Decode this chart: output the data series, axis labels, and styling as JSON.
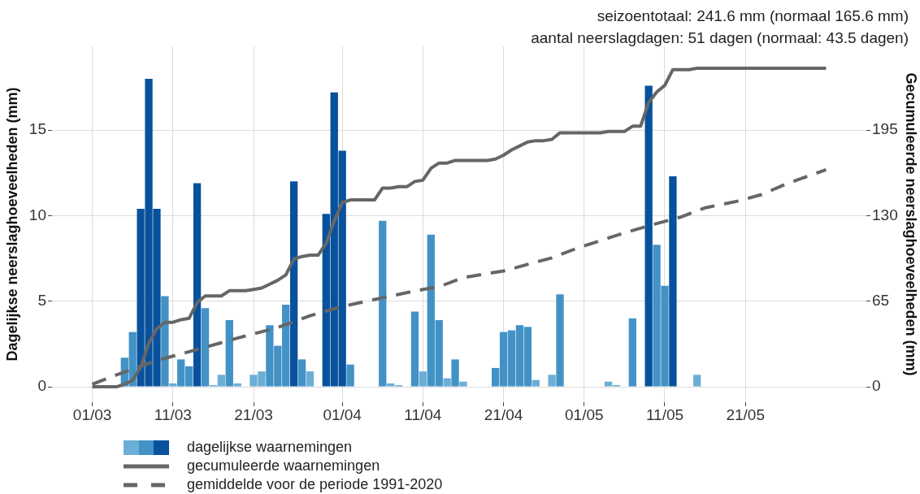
{
  "chart_data": {
    "type": "bar",
    "annotations": [
      "seizoentotaal: 241.6 mm (normaal 165.6 mm)",
      "aantal neerslagdagen: 51 dagen (normaal: 43.5 dagen)"
    ],
    "ylabel": "Dagelijkse neerslaghoeveelheden (mm)",
    "y2label": "Gecumuleerde neerslaghoeveelheden (mm)",
    "x": [
      "--03-01",
      "--03-02",
      "--03-03",
      "--03-04",
      "--03-05",
      "--03-06",
      "--03-07",
      "--03-08",
      "--03-09",
      "--03-10",
      "--03-11",
      "--03-12",
      "--03-13",
      "--03-14",
      "--03-15",
      "--03-16",
      "--03-17",
      "--03-18",
      "--03-19",
      "--03-20",
      "--03-21",
      "--03-22",
      "--03-23",
      "--03-24",
      "--03-25",
      "--03-26",
      "--03-27",
      "--03-28",
      "--03-29",
      "--03-30",
      "--03-31",
      "--04-01",
      "--04-02",
      "--04-03",
      "--04-04",
      "--04-05",
      "--04-06",
      "--04-07",
      "--04-08",
      "--04-09",
      "--04-10",
      "--04-11",
      "--04-12",
      "--04-13",
      "--04-14",
      "--04-15",
      "--04-16",
      "--04-17",
      "--04-18",
      "--04-19",
      "--04-20",
      "--04-21",
      "--04-22",
      "--04-23",
      "--04-24",
      "--04-25",
      "--04-26",
      "--04-27",
      "--04-28",
      "--04-29",
      "--04-30",
      "--05-01",
      "--05-02",
      "--05-03",
      "--05-04",
      "--05-05",
      "--05-06",
      "--05-07",
      "--05-08",
      "--05-09",
      "--05-10",
      "--05-11",
      "--05-12",
      "--05-13",
      "--05-14",
      "--05-15",
      "--05-16",
      "--05-17",
      "--05-18",
      "--05-19",
      "--05-20",
      "--05-21",
      "--05-22",
      "--05-23",
      "--05-24",
      "--05-25",
      "--05-26",
      "--05-27",
      "--05-28",
      "--05-29",
      "--05-30",
      "--05-31"
    ],
    "xlim": [
      "--02-24",
      "--06-05"
    ],
    "xticks": [
      {
        "value": "--03-01",
        "label": "01/03"
      },
      {
        "value": "--03-11",
        "label": "11/03"
      },
      {
        "value": "--03-21",
        "label": "21/03"
      },
      {
        "value": "--04-01",
        "label": "01/04"
      },
      {
        "value": "--04-11",
        "label": "11/04"
      },
      {
        "value": "--04-21",
        "label": "21/04"
      },
      {
        "value": "--05-01",
        "label": "01/05"
      },
      {
        "value": "--05-11",
        "label": "11/05"
      },
      {
        "value": "--05-21",
        "label": "21/05"
      }
    ],
    "ylim": [
      -0.9,
      19.9
    ],
    "yticks": [
      0,
      5,
      10,
      15
    ],
    "y2lim": [
      -11.7,
      258.7
    ],
    "y2ticks": [
      0,
      65,
      130,
      195
    ],
    "grid": true,
    "legend": "bottom left",
    "marker": "none",
    "series": [
      {
        "name": "dagelijkse waarnemingen",
        "values": [
          0,
          0,
          0,
          0,
          1.7,
          3.2,
          10.4,
          18,
          10.4,
          5.3,
          0.2,
          1.6,
          1.2,
          11.9,
          4.6,
          0.1,
          0.7,
          3.9,
          0.2,
          0,
          0.7,
          0.9,
          3.6,
          2.4,
          4.8,
          12,
          1.6,
          0.9,
          0,
          10.1,
          17.2,
          13.8,
          1.3,
          0,
          0,
          0,
          9.7,
          0.2,
          0.1,
          0,
          4.4,
          0.9,
          8.9,
          3.9,
          0.5,
          1.6,
          0.3,
          0,
          0,
          0,
          1.1,
          3.2,
          3.3,
          3.6,
          3.5,
          0.4,
          0,
          0.7,
          5.4,
          0,
          0,
          0,
          0,
          0,
          0.3,
          0.1,
          0,
          4,
          0,
          17.6,
          8.3,
          5.9,
          12.3,
          0,
          0,
          0.7,
          0,
          0,
          0,
          0,
          0,
          0,
          0,
          0,
          0,
          0,
          0,
          0,
          0,
          0,
          0,
          0
        ],
        "colors": [
          "#6baed6",
          "#6baed6",
          "#6baed6",
          "#6baed6",
          "#4292c6",
          "#4292c6",
          "#08519c",
          "#08519c",
          "#08519c",
          "#4292c6",
          "#6baed6",
          "#4292c6",
          "#4292c6",
          "#08519c",
          "#4292c6",
          "#6baed6",
          "#6baed6",
          "#4292c6",
          "#6baed6",
          "#6baed6",
          "#6baed6",
          "#6baed6",
          "#4292c6",
          "#4292c6",
          "#4292c6",
          "#08519c",
          "#4292c6",
          "#6baed6",
          "#6baed6",
          "#08519c",
          "#08519c",
          "#08519c",
          "#4292c6",
          "#6baed6",
          "#6baed6",
          "#6baed6",
          "#4292c6",
          "#6baed6",
          "#6baed6",
          "#6baed6",
          "#4292c6",
          "#6baed6",
          "#4292c6",
          "#4292c6",
          "#6baed6",
          "#4292c6",
          "#6baed6",
          "#6baed6",
          "#6baed6",
          "#6baed6",
          "#4292c6",
          "#4292c6",
          "#4292c6",
          "#4292c6",
          "#4292c6",
          "#6baed6",
          "#6baed6",
          "#6baed6",
          "#4292c6",
          "#6baed6",
          "#6baed6",
          "#6baed6",
          "#6baed6",
          "#6baed6",
          "#6baed6",
          "#6baed6",
          "#6baed6",
          "#4292c6",
          "#6baed6",
          "#08519c",
          "#4292c6",
          "#4292c6",
          "#08519c",
          "#6baed6",
          "#6baed6",
          "#6baed6",
          "#6baed6",
          "#6baed6",
          "#6baed6",
          "#6baed6",
          "#6baed6",
          "#6baed6",
          "#6baed6",
          "#6baed6",
          "#6baed6",
          "#6baed6",
          "#6baed6",
          "#6baed6",
          "#6baed6",
          "#6baed6",
          "#6baed6",
          "#6baed6"
        ]
      },
      {
        "name": "gecumuleerde waarnemingen",
        "type": "line",
        "axis": "y2",
        "color": "#666666",
        "line_style": "solid",
        "values": [
          0,
          0,
          0,
          0,
          2,
          5,
          15,
          33,
          44,
          49,
          49,
          51,
          52,
          64,
          69,
          69,
          69,
          73,
          73,
          73,
          74,
          75,
          78,
          81,
          85,
          97,
          99,
          100,
          100,
          109,
          126,
          140,
          142,
          142,
          142,
          142,
          151,
          151,
          152,
          152,
          156,
          157,
          166,
          170,
          170,
          172,
          172,
          172,
          172,
          172,
          173,
          176,
          180,
          183,
          186,
          187,
          187,
          188,
          193,
          193,
          193,
          193,
          193,
          193,
          194,
          194,
          194,
          198,
          198,
          216,
          224,
          229,
          241,
          241,
          241,
          242,
          242,
          242,
          242,
          242,
          242,
          242,
          242,
          242,
          242,
          242,
          242,
          242,
          242,
          242,
          242,
          242
        ]
      },
      {
        "name": "gemiddelde voor de periode 1991-2020",
        "type": "line",
        "axis": "y2",
        "color": "#666666",
        "line_style": "dashed",
        "x": [
          "--03-01",
          "--03-04",
          "--03-09",
          "--03-15",
          "--03-19",
          "--03-24",
          "--03-28",
          "--04-01",
          "--04-04",
          "--04-07",
          "--04-11",
          "--04-13",
          "--04-16",
          "--04-21",
          "--04-24",
          "--04-27",
          "--04-30",
          "--05-03",
          "--05-06",
          "--05-10",
          "--05-13",
          "--05-16",
          "--05-20",
          "--05-23",
          "--05-26",
          "--05-31"
        ],
        "values": [
          2,
          9,
          20,
          30,
          37,
          45,
          54,
          61,
          65,
          69,
          74,
          76,
          83,
          88,
          93,
          98,
          105,
          111,
          117,
          124,
          129,
          136,
          141,
          146,
          154,
          165
        ]
      }
    ]
  }
}
